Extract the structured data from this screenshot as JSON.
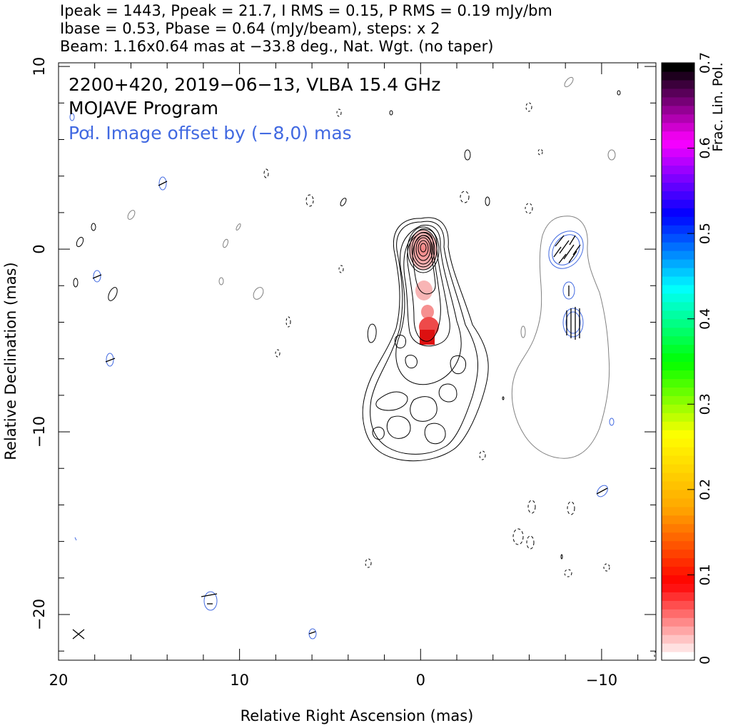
{
  "header": {
    "line1": "Ipeak = 1443, Ppeak = 21.7, I RMS = 0.15, P RMS = 0.19 mJy/bm",
    "line2": "Ibase = 0.53, Pbase = 0.64 (mJy/beam), steps: x 2",
    "line3": "Beam: 1.16x0.64 mas at −33.8 deg., Nat. Wgt. (no taper)"
  },
  "annotations": {
    "source_line": "2200+420, 2019−06−13, VLBA 15.4 GHz",
    "program": "MOJAVE Program",
    "pol_offset": "Pol. Image offset by (−8,0) mas"
  },
  "colors": {
    "total_intensity_contours": "#000000",
    "polarization_contours": "#4169e1",
    "offset_total_contour": "#808080",
    "evpa_ticks": "#000000",
    "colorbar_scale": [
      "#ffffff",
      "#ff0000",
      "#ffa500",
      "#ffff00",
      "#00ff00",
      "#00ffff",
      "#0000ff",
      "#ff00ff",
      "#000000"
    ]
  },
  "chart_data": {
    "type": "heatmap",
    "xlabel": "Relative Right Ascension (mas)",
    "ylabel": "Relative Declination (mas)",
    "xlim": [
      20,
      -13
    ],
    "ylim": [
      -22.5,
      10.2
    ],
    "x_ticks": [
      20,
      10,
      0,
      -10
    ],
    "x_tick_labels": [
      "20",
      "10",
      "0",
      "−10"
    ],
    "y_ticks": [
      10,
      0,
      -10,
      -20
    ],
    "y_tick_labels": [
      "10",
      "0",
      "−10",
      "−20"
    ],
    "grid": false,
    "colorbar": {
      "label": "Frac. Lin. Pol.",
      "range": [
        0,
        0.7
      ],
      "ticks": [
        0,
        0.1,
        0.2,
        0.3,
        0.4,
        0.5,
        0.6,
        0.7
      ],
      "tick_labels": [
        "0",
        "0.1",
        "0.2",
        "0.3",
        "0.4",
        "0.5",
        "0.6",
        "0.7"
      ],
      "placement": "right"
    },
    "source": "2200+420",
    "peak_position": [
      0,
      0
    ],
    "polarization_offset_mas": [
      -8,
      0
    ],
    "frac_pol_patches": [
      {
        "x": 0.0,
        "y": -0.2,
        "frac_pol": 0.02
      },
      {
        "x": 0.0,
        "y": -2.3,
        "frac_pol": 0.03
      },
      {
        "x": -0.2,
        "y": -3.6,
        "frac_pol": 0.05
      },
      {
        "x": -0.3,
        "y": -4.5,
        "frac_pol": 0.1
      },
      {
        "x": -0.2,
        "y": -5.0,
        "frac_pol": 0.14
      }
    ],
    "beam": {
      "major_mas": 1.16,
      "minor_mas": 0.64,
      "pa_deg": -33.8
    },
    "ipeak_mJy_per_beam": 1443,
    "ppeak_mJy_per_beam": 21.7,
    "contour_step_factor": 2
  }
}
